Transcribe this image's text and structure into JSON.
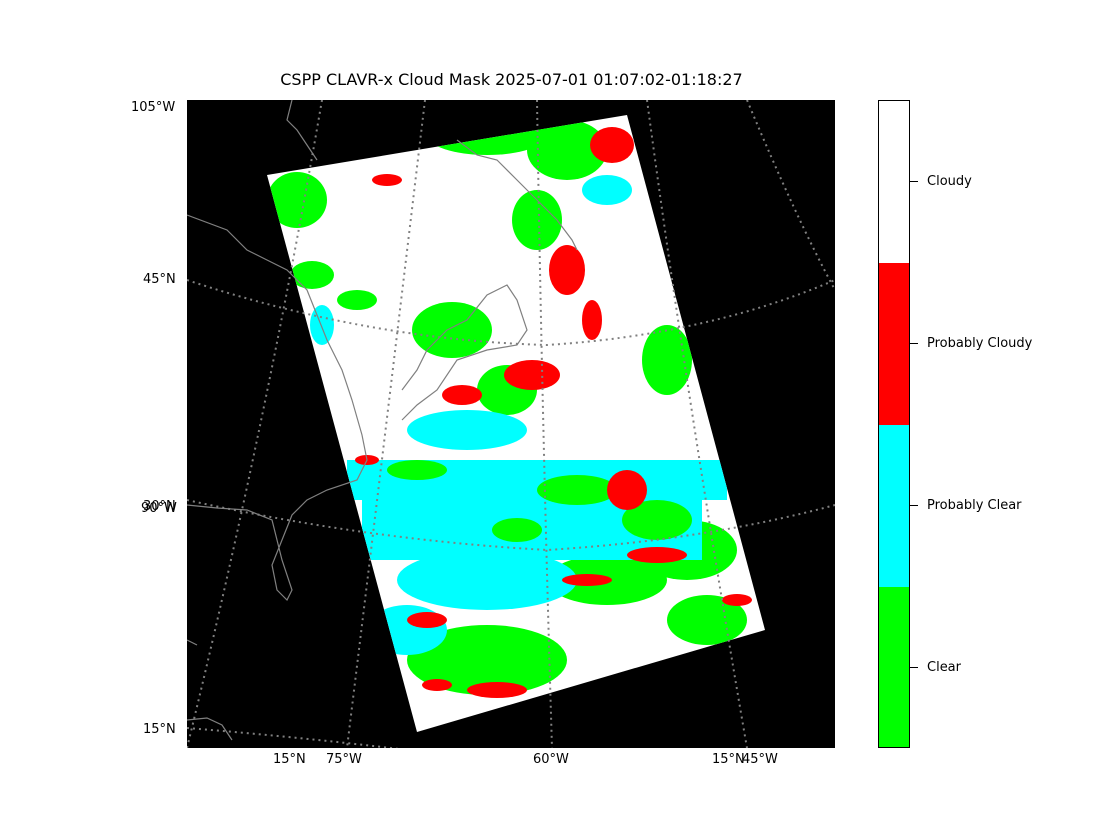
{
  "title": "CSPP CLAVR-x Cloud Mask 2025-07-01 01:07:02-01:18:27",
  "map": {
    "lat_labels_left": [
      "105°W",
      "45°N",
      "30°N",
      "90°W",
      "15°N"
    ],
    "lon_labels_bottom": [
      "15°N",
      "75°W",
      "60°W",
      "15°N",
      "45°W"
    ],
    "background_color": "#000000",
    "graticule_color": "#808080",
    "coastline_color": "#808080"
  },
  "colorbar": {
    "categories": [
      {
        "label": "Cloudy",
        "color": "#ffffff"
      },
      {
        "label": "Probably Cloudy",
        "color": "#ff0000"
      },
      {
        "label": "Probably Clear",
        "color": "#00ffff"
      },
      {
        "label": "Clear",
        "color": "#00ff00"
      }
    ]
  }
}
